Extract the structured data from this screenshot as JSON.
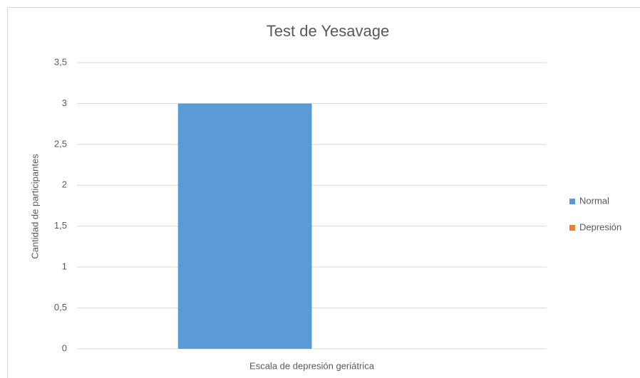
{
  "chart_data": {
    "type": "bar",
    "title": "Test de Yesavage",
    "y_label": "Cantidad de participantes",
    "categories": [
      "Escala de depresión geriátrica"
    ],
    "series": [
      {
        "name": "Normal",
        "color": "#5b9bd5",
        "values": [
          3
        ]
      },
      {
        "name": "Depresión",
        "color": "#ed7d31",
        "values": [
          0
        ]
      }
    ],
    "ylim": [
      0,
      3.5
    ],
    "yticks": [
      0,
      {
        "value": 0.5,
        "label": "0,5"
      },
      1,
      {
        "value": 1.5,
        "label": "1,5"
      },
      2,
      {
        "value": 2.5,
        "label": "2,5"
      },
      3,
      {
        "value": 3.5,
        "label": "3,5"
      }
    ],
    "grid": true,
    "legend": "right"
  }
}
